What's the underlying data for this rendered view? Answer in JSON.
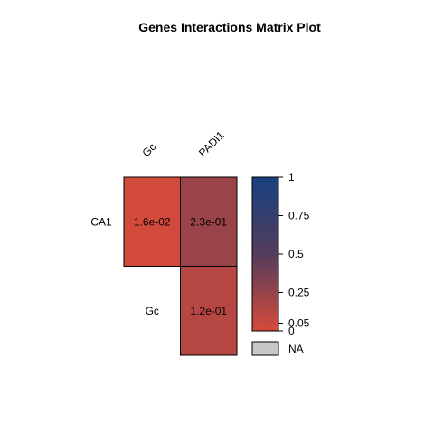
{
  "chart_data": {
    "type": "heatmap",
    "title": "Genes Interactions Matrix Plot",
    "columns": [
      "Gc",
      "PADI1"
    ],
    "rows": [
      "CA1",
      "Gc"
    ],
    "cells": [
      {
        "row": "CA1",
        "col": "Gc",
        "value": 0.016,
        "label": "1.6e-02"
      },
      {
        "row": "CA1",
        "col": "PADI1",
        "value": 0.23,
        "label": "2.3e-01"
      },
      {
        "row": "Gc",
        "col": "PADI1",
        "value": 0.12,
        "label": "1.2e-01"
      }
    ],
    "colorscale": {
      "min": 0,
      "max": 1,
      "low_color": "#d64a3a",
      "mid_color": "#543c5c",
      "high_color": "#17417f",
      "ticks": [
        "0",
        "0.05",
        "0.25",
        "0.5",
        "0.75",
        "1"
      ],
      "tick_values": [
        0,
        0.05,
        0.25,
        0.5,
        0.75,
        1
      ]
    },
    "na_legend": {
      "label": "NA",
      "color": "#c8c8c8"
    },
    "grid": false
  }
}
